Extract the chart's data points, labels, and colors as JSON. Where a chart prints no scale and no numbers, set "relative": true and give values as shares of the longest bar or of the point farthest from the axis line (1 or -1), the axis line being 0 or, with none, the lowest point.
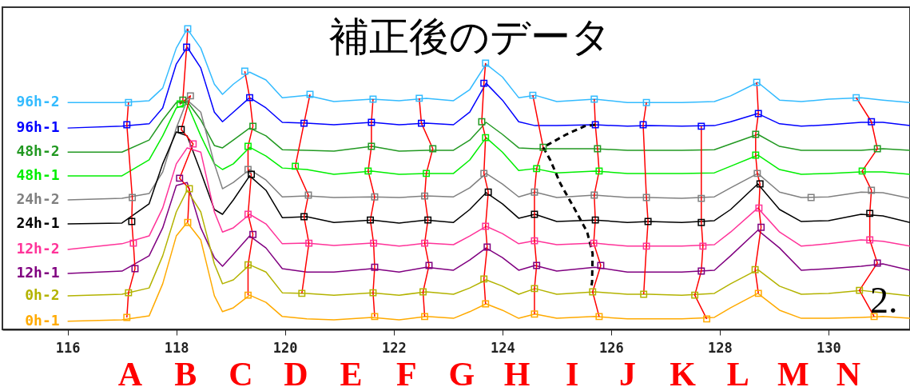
{
  "chart_data": {
    "type": "line",
    "title": "補正後のデータ",
    "relative": true,
    "x": [
      116,
      117,
      117.5,
      117.75,
      118,
      118.2,
      118.45,
      118.7,
      118.85,
      119.05,
      119.35,
      119.65,
      119.95,
      120.4,
      120.9,
      121.6,
      122.1,
      122.6,
      123.1,
      123.4,
      123.7,
      124,
      124.3,
      124.6,
      125,
      125.7,
      126.3,
      126.7,
      127.3,
      127.9,
      128.2,
      128.7,
      129.1,
      129.5,
      130,
      130.6,
      131,
      131.5
    ],
    "xlim": [
      114.8,
      131.5
    ],
    "xticks": [
      116,
      118,
      120,
      122,
      124,
      126,
      128,
      130
    ],
    "series": [
      {
        "name": "96h-2",
        "color": "#33bbff",
        "values": [
          0.755,
          0.755,
          0.761,
          0.803,
          0.936,
          1,
          0.936,
          0.816,
          0.782,
          0.816,
          0.856,
          0.83,
          0.771,
          0.779,
          0.758,
          0.766,
          0.761,
          0.769,
          0.761,
          0.798,
          0.883,
          0.84,
          0.771,
          0.779,
          0.758,
          0.766,
          0.755,
          0.755,
          0.755,
          0.758,
          0.777,
          0.822,
          0.763,
          0.758,
          0.766,
          0.771,
          0.763,
          0.755
        ]
      },
      {
        "name": "96h-1",
        "color": "#0000ff",
        "values": [
          0.67,
          0.676,
          0.684,
          0.737,
          0.883,
          0.939,
          0.87,
          0.723,
          0.691,
          0.723,
          0.771,
          0.737,
          0.689,
          0.686,
          0.681,
          0.689,
          0.681,
          0.686,
          0.681,
          0.723,
          0.819,
          0.763,
          0.691,
          0.678,
          0.678,
          0.681,
          0.676,
          0.678,
          0.676,
          0.678,
          0.691,
          0.718,
          0.684,
          0.676,
          0.681,
          0.689,
          0.689,
          0.678
        ]
      },
      {
        "name": "48h-2",
        "color": "#229922",
        "values": [
          0.59,
          0.59,
          0.63,
          0.697,
          0.755,
          0.758,
          0.697,
          0.612,
          0.604,
          0.63,
          0.67,
          0.644,
          0.598,
          0.596,
          0.593,
          0.609,
          0.593,
          0.596,
          0.596,
          0.63,
          0.689,
          0.649,
          0.604,
          0.601,
          0.601,
          0.601,
          0.596,
          0.596,
          0.596,
          0.598,
          0.617,
          0.649,
          0.609,
          0.596,
          0.596,
          0.596,
          0.601,
          0.596
        ]
      },
      {
        "name": "48h-1",
        "color": "#00ee00",
        "values": [
          0.511,
          0.511,
          0.564,
          0.644,
          0.737,
          0.75,
          0.644,
          0.551,
          0.532,
          0.551,
          0.606,
          0.577,
          0.537,
          0.532,
          0.516,
          0.527,
          0.516,
          0.519,
          0.519,
          0.564,
          0.638,
          0.59,
          0.529,
          0.535,
          0.521,
          0.527,
          0.519,
          0.519,
          0.519,
          0.521,
          0.543,
          0.58,
          0.532,
          0.516,
          0.519,
          0.524,
          0.524,
          0.516
        ]
      },
      {
        "name": "24h-2",
        "color": "#808080",
        "values": [
          0.431,
          0.436,
          0.452,
          0.524,
          0.67,
          0.763,
          0.723,
          0.551,
          0.468,
          0.489,
          0.532,
          0.497,
          0.441,
          0.444,
          0.439,
          0.441,
          0.439,
          0.444,
          0.441,
          0.471,
          0.519,
          0.484,
          0.441,
          0.457,
          0.439,
          0.447,
          0.439,
          0.439,
          0.436,
          0.441,
          0.471,
          0.519,
          0.457,
          0.439,
          0.441,
          0.457,
          0.455,
          0.436
        ]
      },
      {
        "name": "24h-1",
        "color": "#000000",
        "values": [
          0.351,
          0.354,
          0.418,
          0.551,
          0.657,
          0.644,
          0.524,
          0.399,
          0.383,
          0.431,
          0.511,
          0.463,
          0.372,
          0.375,
          0.356,
          0.364,
          0.354,
          0.364,
          0.356,
          0.399,
          0.455,
          0.418,
          0.37,
          0.383,
          0.359,
          0.364,
          0.356,
          0.359,
          0.356,
          0.362,
          0.399,
          0.484,
          0.399,
          0.359,
          0.362,
          0.383,
          0.378,
          0.356
        ]
      },
      {
        "name": "12h-2",
        "color": "#ff3399",
        "values": [
          0.266,
          0.285,
          0.311,
          0.404,
          0.551,
          0.604,
          0.59,
          0.391,
          0.324,
          0.338,
          0.383,
          0.351,
          0.285,
          0.287,
          0.279,
          0.287,
          0.277,
          0.287,
          0.282,
          0.311,
          0.343,
          0.319,
          0.285,
          0.295,
          0.282,
          0.287,
          0.277,
          0.277,
          0.277,
          0.282,
          0.324,
          0.404,
          0.324,
          0.277,
          0.285,
          0.298,
          0.293,
          0.277
        ]
      },
      {
        "name": "12h-1",
        "color": "#800080",
        "values": [
          0.186,
          0.194,
          0.245,
          0.338,
          0.479,
          0.489,
          0.338,
          0.239,
          0.21,
          0.25,
          0.311,
          0.271,
          0.202,
          0.191,
          0.191,
          0.202,
          0.191,
          0.207,
          0.197,
          0.231,
          0.271,
          0.239,
          0.197,
          0.213,
          0.194,
          0.207,
          0.191,
          0.191,
          0.191,
          0.197,
          0.245,
          0.33,
          0.271,
          0.197,
          0.202,
          0.21,
          0.218,
          0.197
        ]
      },
      {
        "name": "0h-2",
        "color": "#b3b300",
        "values": [
          0.112,
          0.117,
          0.138,
          0.245,
          0.391,
          0.463,
          0.391,
          0.218,
          0.152,
          0.165,
          0.215,
          0.191,
          0.122,
          0.12,
          0.114,
          0.122,
          0.114,
          0.125,
          0.117,
          0.138,
          0.165,
          0.144,
          0.117,
          0.136,
          0.117,
          0.125,
          0.117,
          0.117,
          0.114,
          0.12,
          0.152,
          0.199,
          0.144,
          0.117,
          0.12,
          0.13,
          0.122,
          0.112
        ]
      },
      {
        "name": "0h-1",
        "color": "#ffaa00",
        "values": [
          0.027,
          0.032,
          0.045,
          0.152,
          0.311,
          0.356,
          0.298,
          0.112,
          0.059,
          0.072,
          0.114,
          0.09,
          0.043,
          0.035,
          0.032,
          0.04,
          0.032,
          0.043,
          0.037,
          0.059,
          0.085,
          0.064,
          0.037,
          0.051,
          0.037,
          0.043,
          0.035,
          0.035,
          0.035,
          0.04,
          0.072,
          0.12,
          0.064,
          0.037,
          0.037,
          0.04,
          0.043,
          0.037
        ]
      },
      {
        "type": "line",
        "color": "#ff0000",
        "x": [
          117.12,
          117.09,
          117.19,
          117.18,
          117.21,
          117.24,
          117.12,
          117.09
        ],
        "values": [
          0.755,
          0.681,
          0.439,
          0.359,
          0.287,
          0.202,
          0.122,
          0.04
        ]
      },
      {
        "type": "line",
        "color": "#ff0000",
        "x": [
          118.21,
          118.19,
          118.12,
          118.07,
          118.26,
          118.09,
          118.31,
          118.06,
          118.24,
          118.21
        ],
        "values": [
          1,
          0.939,
          0.763,
          0.75,
          0.777,
          0.665,
          0.617,
          0.503,
          0.468,
          0.356
        ]
      },
      {
        "type": "line",
        "color": "#ff0000",
        "x": [
          119.26,
          119.35,
          119.41,
          119.32,
          119.32,
          119.38,
          119.32,
          119.41,
          119.32,
          119.32
        ],
        "values": [
          0.859,
          0.771,
          0.676,
          0.609,
          0.532,
          0.516,
          0.383,
          0.316,
          0.215,
          0.114
        ]
      },
      {
        "type": "line",
        "color": "#ff0000",
        "x": [
          120.46,
          120.35,
          120.19,
          120.43,
          120.35,
          120.44,
          120.31
        ],
        "values": [
          0.782,
          0.686,
          0.543,
          0.447,
          0.375,
          0.287,
          0.12
        ]
      },
      {
        "type": "line",
        "color": "#ff0000",
        "x": [
          121.62,
          121.59,
          121.59,
          121.53,
          121.65,
          121.57,
          121.63,
          121.65,
          121.62,
          121.65
        ],
        "values": [
          0.766,
          0.689,
          0.609,
          0.527,
          0.441,
          0.364,
          0.287,
          0.207,
          0.122,
          0.043
        ]
      },
      {
        "type": "line",
        "color": "#ff0000",
        "x": [
          122.47,
          122.51,
          122.72,
          122.6,
          122.57,
          122.63,
          122.57,
          122.65,
          122.54,
          122.57
        ],
        "values": [
          0.769,
          0.686,
          0.601,
          0.519,
          0.444,
          0.364,
          0.287,
          0.213,
          0.125,
          0.043
        ]
      },
      {
        "type": "line",
        "color": "#ff0000",
        "x": [
          123.69,
          123.66,
          123.62,
          123.69,
          123.66,
          123.74,
          123.69,
          123.72,
          123.66,
          123.69
        ],
        "values": [
          0.886,
          0.819,
          0.691,
          0.638,
          0.519,
          0.457,
          0.343,
          0.274,
          0.168,
          0.085
        ]
      },
      {
        "type": "line",
        "color": "#ff0000",
        "x": [
          124.56,
          124.75,
          124.63,
          124.59,
          124.59,
          124.59,
          124.63,
          124.59,
          124.59
        ],
        "values": [
          0.779,
          0.606,
          0.535,
          0.457,
          0.383,
          0.295,
          0.213,
          0.136,
          0.051
        ]
      },
      {
        "type": "line",
        "color": "#ff0000",
        "x": [
          125.69,
          125.71,
          125.75,
          125.78,
          125.69,
          125.71,
          125.68,
          125.81,
          125.66,
          125.78
        ],
        "values": [
          0.766,
          0.681,
          0.601,
          0.527,
          0.447,
          0.364,
          0.287,
          0.213,
          0.125,
          0.043
        ]
      },
      {
        "type": "line",
        "color": "#ff0000",
        "x": [
          126.65,
          126.59,
          126.65,
          126.68,
          126.65,
          126.6
        ],
        "values": [
          0.755,
          0.681,
          0.439,
          0.359,
          0.277,
          0.117
        ]
      },
      {
        "type": "line",
        "color": "#ff0000",
        "x": [
          127.66,
          127.66,
          127.66,
          127.69,
          127.66,
          127.54,
          127.76
        ],
        "values": [
          0.676,
          0.436,
          0.356,
          0.277,
          0.194,
          0.114,
          0.035
        ]
      },
      {
        "type": "line",
        "color": "#ff0000",
        "x": [
          128.68,
          128.71,
          128.66,
          128.66,
          128.69,
          128.74,
          128.72,
          128.76,
          128.65,
          128.71
        ],
        "values": [
          0.822,
          0.718,
          0.649,
          0.58,
          0.519,
          0.484,
          0.404,
          0.34,
          0.199,
          0.12
        ]
      },
      {
        "type": "line",
        "color": "#ff0000",
        "x": [
          130.51,
          130.79,
          130.9,
          130.62,
          130.79,
          130.76,
          130.76,
          130.9,
          130.57,
          130.84
        ],
        "values": [
          0.771,
          0.691,
          0.601,
          0.527,
          0.463,
          0.386,
          0.298,
          0.221,
          0.13,
          0.043
        ]
      },
      {
        "type": "line",
        "color": "#000000",
        "line_style": "dashed",
        "x": [
          125.71,
          125.51,
          125.18,
          124.75,
          124.88,
          125.07,
          125.32,
          125.56,
          125.66,
          125.65,
          125.63
        ],
        "values": [
          0.681,
          0.676,
          0.649,
          0.606,
          0.564,
          0.484,
          0.404,
          0.324,
          0.253,
          0.157,
          0.138
        ]
      },
      {
        "type": "scatter",
        "marker": "square",
        "color": "#33bbff",
        "x": [
          117.12,
          118.21,
          119.26,
          120.46,
          121.62,
          122.47,
          123.69,
          124.56,
          125.69,
          126.65,
          128.68,
          130.51
        ],
        "values": [
          0.755,
          1,
          0.859,
          0.782,
          0.766,
          0.769,
          0.886,
          0.779,
          0.766,
          0.755,
          0.822,
          0.771
        ]
      },
      {
        "type": "scatter",
        "marker": "square",
        "color": "#0000ff",
        "x": [
          117.09,
          118.19,
          119.35,
          120.35,
          121.59,
          122.51,
          123.66,
          125.71,
          126.59,
          127.66,
          128.71,
          130.79
        ],
        "values": [
          0.681,
          0.939,
          0.771,
          0.686,
          0.689,
          0.686,
          0.819,
          0.681,
          0.681,
          0.676,
          0.718,
          0.691
        ]
      },
      {
        "type": "scatter",
        "marker": "square",
        "color": "#229922",
        "x": [
          118.12,
          119.41,
          121.59,
          122.72,
          123.62,
          124.75,
          125.75,
          128.66,
          130.9
        ],
        "values": [
          0.763,
          0.676,
          0.609,
          0.601,
          0.691,
          0.606,
          0.601,
          0.649,
          0.601
        ]
      },
      {
        "type": "scatter",
        "marker": "square",
        "color": "#00ee00",
        "x": [
          118.07,
          119.32,
          120.19,
          121.53,
          122.6,
          123.69,
          124.63,
          125.78,
          128.66,
          130.62
        ],
        "values": [
          0.75,
          0.609,
          0.543,
          0.527,
          0.519,
          0.638,
          0.535,
          0.527,
          0.58,
          0.527
        ]
      },
      {
        "type": "scatter",
        "marker": "square",
        "color": "#808080",
        "x": [
          117.19,
          118.26,
          119.32,
          120.43,
          121.65,
          122.57,
          123.66,
          124.59,
          125.69,
          126.65,
          127.66,
          128.69,
          129.68,
          130.79
        ],
        "values": [
          0.439,
          0.777,
          0.532,
          0.447,
          0.441,
          0.444,
          0.519,
          0.457,
          0.447,
          0.439,
          0.436,
          0.519,
          0.439,
          0.463
        ]
      },
      {
        "type": "scatter",
        "marker": "square",
        "color": "#000000",
        "x": [
          117.18,
          118.09,
          119.38,
          120.35,
          121.57,
          122.63,
          123.74,
          124.59,
          125.71,
          126.68,
          127.66,
          128.74,
          130.76
        ],
        "values": [
          0.359,
          0.665,
          0.516,
          0.375,
          0.364,
          0.364,
          0.457,
          0.383,
          0.364,
          0.359,
          0.356,
          0.484,
          0.386
        ]
      },
      {
        "type": "scatter",
        "marker": "square",
        "color": "#ff3399",
        "x": [
          117.21,
          118.31,
          119.32,
          120.44,
          121.63,
          122.57,
          123.69,
          124.59,
          125.68,
          126.65,
          127.69,
          128.72,
          130.76
        ],
        "values": [
          0.287,
          0.617,
          0.383,
          0.287,
          0.287,
          0.287,
          0.343,
          0.295,
          0.287,
          0.277,
          0.277,
          0.404,
          0.298
        ]
      },
      {
        "type": "scatter",
        "marker": "square",
        "color": "#800080",
        "x": [
          117.24,
          118.06,
          119.41,
          121.65,
          122.65,
          123.72,
          124.63,
          125.81,
          127.66,
          128.76,
          130.9
        ],
        "values": [
          0.202,
          0.503,
          0.316,
          0.207,
          0.213,
          0.274,
          0.213,
          0.213,
          0.194,
          0.34,
          0.221
        ]
      },
      {
        "type": "scatter",
        "marker": "square",
        "color": "#b3b300",
        "x": [
          117.12,
          118.24,
          119.32,
          120.31,
          121.62,
          122.54,
          123.66,
          124.59,
          125.66,
          126.6,
          127.54,
          128.65,
          130.57
        ],
        "values": [
          0.122,
          0.468,
          0.215,
          0.12,
          0.122,
          0.125,
          0.168,
          0.136,
          0.125,
          0.117,
          0.114,
          0.199,
          0.13
        ]
      },
      {
        "type": "scatter",
        "marker": "square",
        "color": "#ffaa00",
        "x": [
          117.09,
          118.21,
          119.32,
          121.65,
          122.57,
          123.69,
          124.59,
          125.78,
          127.76,
          128.71,
          130.84
        ],
        "values": [
          0.04,
          0.356,
          0.114,
          0.043,
          0.043,
          0.085,
          0.051,
          0.043,
          0.035,
          0.12,
          0.043
        ]
      }
    ],
    "annotations": [
      "A",
      "B",
      "C",
      "D",
      "E",
      "F",
      "G",
      "H",
      "I",
      "J",
      "K",
      "L",
      "M",
      "N",
      "2."
    ]
  }
}
